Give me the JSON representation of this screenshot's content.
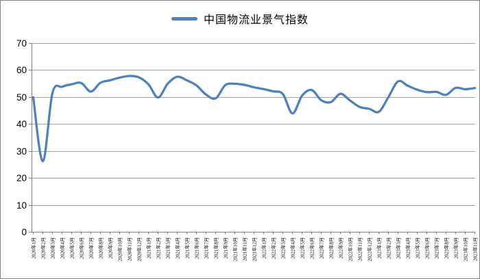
{
  "chart_data": {
    "type": "line",
    "title": "",
    "series_name": "中国物流业景气指数",
    "legend_position": "top",
    "grid": true,
    "ylim": [
      0,
      70
    ],
    "yticks": [
      0,
      10,
      20,
      30,
      40,
      50,
      60,
      70
    ],
    "categories": [
      "2020年1月",
      "2020年2月",
      "2020年3月",
      "2020年4月",
      "2020年5月",
      "2020年6月",
      "2020年7月",
      "2020年8月",
      "2020年9月",
      "2020年10月",
      "2020年11月",
      "2020年12月",
      "2021年1月",
      "2021年2月",
      "2021年3月",
      "2021年4月",
      "2021年5月",
      "2021年6月",
      "2021年7月",
      "2021年8月",
      "2021年9月",
      "2021年10月",
      "2021年11月",
      "2021年12月",
      "2022年1月",
      "2022年2月",
      "2022年3月",
      "2022年4月",
      "2022年5月",
      "2022年6月",
      "2022年7月",
      "2022年8月",
      "2022年9月",
      "2022年10月",
      "2022年11月",
      "2022年12月",
      "2023年1月",
      "2023年2月",
      "2023年3月",
      "2023年4月",
      "2023年5月",
      "2023年6月",
      "2023年7月",
      "2023年8月",
      "2023年9月",
      "2023年10月",
      "2023年11月"
    ],
    "values": [
      49.9,
      26.2,
      51.5,
      53.8,
      54.7,
      55.2,
      52.0,
      55.3,
      56.2,
      57.2,
      57.8,
      57.3,
      54.7,
      49.8,
      54.9,
      57.5,
      56.2,
      54.3,
      50.9,
      49.5,
      54.4,
      54.9,
      54.5,
      53.6,
      52.9,
      52.1,
      51.1,
      43.9,
      50.5,
      52.6,
      48.8,
      48.1,
      51.2,
      48.7,
      46.3,
      45.6,
      44.5,
      50.0,
      55.8,
      54.2,
      52.7,
      51.8,
      51.9,
      50.8,
      53.4,
      52.9,
      53.3
    ],
    "colors": {
      "line": "#4F81BD",
      "gridline": "#A3A3A3",
      "axis": "#808080",
      "label": "#000000",
      "chart_border": "#7f7f7f"
    }
  }
}
